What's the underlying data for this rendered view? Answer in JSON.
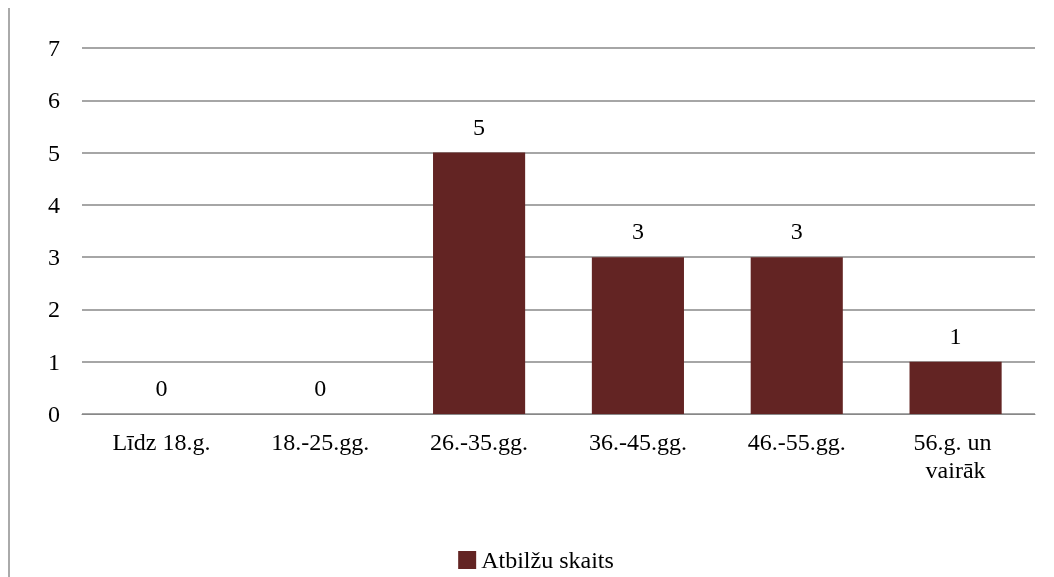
{
  "chart_data": {
    "type": "bar",
    "categories": [
      "Līdz 18.g.",
      "18.-25.gg.",
      "26.-35.gg.",
      "36.-45.gg.",
      "46.-55.gg.",
      "56.g. un vairāk"
    ],
    "series": [
      {
        "name": "Atbilžu skaits",
        "color": "#632423",
        "values": [
          0,
          0,
          5,
          3,
          3,
          1
        ]
      }
    ],
    "ylim": [
      0,
      7
    ],
    "yticks": [
      0,
      1,
      2,
      3,
      4,
      5,
      6,
      7
    ],
    "grid": "y",
    "legend": "bottom",
    "data_labels": true
  }
}
